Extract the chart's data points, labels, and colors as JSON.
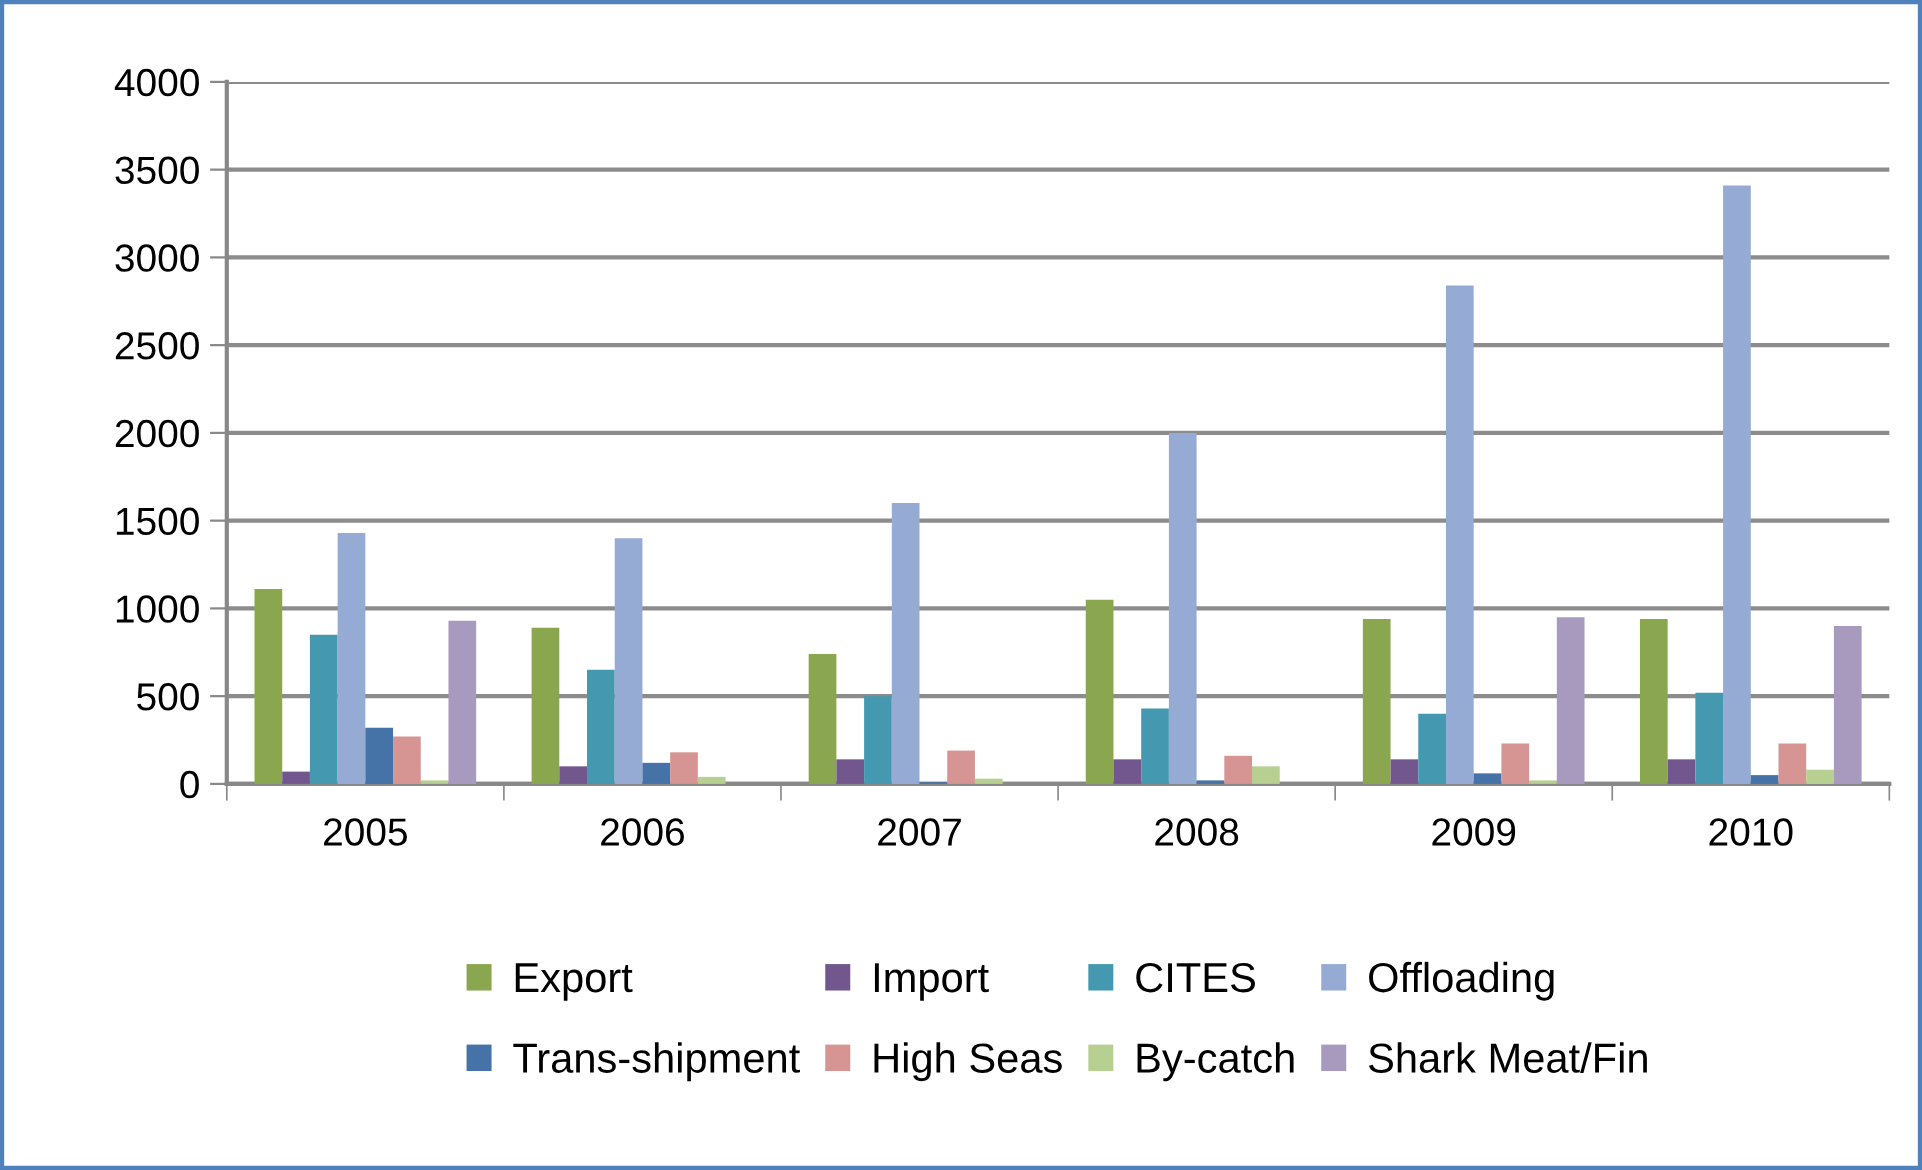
{
  "chart_data": {
    "type": "bar",
    "categories": [
      "2005",
      "2006",
      "2007",
      "2008",
      "2009",
      "2010"
    ],
    "series": [
      {
        "name": "Export",
        "color": "#8aa64f",
        "values": [
          1110,
          890,
          740,
          1050,
          940,
          940
        ]
      },
      {
        "name": "Import",
        "color": "#72578f",
        "values": [
          70,
          100,
          140,
          140,
          140,
          140
        ]
      },
      {
        "name": "CITES",
        "color": "#4499b0",
        "values": [
          850,
          650,
          500,
          430,
          400,
          520
        ]
      },
      {
        "name": "Offloading",
        "color": "#95abd3",
        "values": [
          1430,
          1400,
          1600,
          2000,
          2840,
          3410
        ]
      },
      {
        "name": "Trans-shipment",
        "color": "#4572a7",
        "values": [
          320,
          120,
          10,
          20,
          60,
          50
        ]
      },
      {
        "name": "High Seas",
        "color": "#d69593",
        "values": [
          270,
          180,
          190,
          160,
          230,
          230
        ]
      },
      {
        "name": "By-catch",
        "color": "#b8cf92",
        "values": [
          20,
          40,
          30,
          100,
          20,
          80
        ]
      },
      {
        "name": "Shark Meat/Fin",
        "color": "#a89abf",
        "values": [
          930,
          null,
          null,
          null,
          950,
          900
        ]
      }
    ],
    "ylim": [
      0,
      4000
    ],
    "yticks": [
      0,
      500,
      1000,
      1500,
      2000,
      2500,
      3000,
      3500,
      4000
    ],
    "grid": "y",
    "legend": "bottom"
  }
}
